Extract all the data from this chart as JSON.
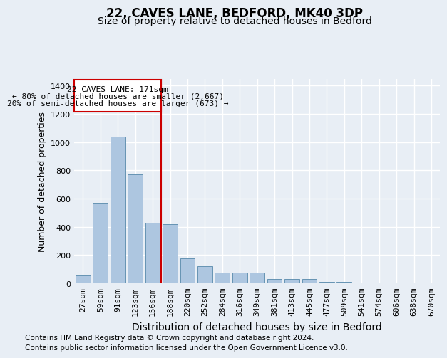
{
  "title1": "22, CAVES LANE, BEDFORD, MK40 3DP",
  "title2": "Size of property relative to detached houses in Bedford",
  "xlabel": "Distribution of detached houses by size in Bedford",
  "ylabel": "Number of detached properties",
  "categories": [
    "27sqm",
    "59sqm",
    "91sqm",
    "123sqm",
    "156sqm",
    "188sqm",
    "220sqm",
    "252sqm",
    "284sqm",
    "316sqm",
    "349sqm",
    "381sqm",
    "413sqm",
    "445sqm",
    "477sqm",
    "509sqm",
    "541sqm",
    "574sqm",
    "606sqm",
    "638sqm",
    "670sqm"
  ],
  "values": [
    57,
    570,
    1040,
    770,
    430,
    420,
    175,
    120,
    75,
    75,
    75,
    30,
    30,
    30,
    8,
    8,
    0,
    0,
    0,
    0,
    0
  ],
  "bar_color": "#adc6e0",
  "bar_edge_color": "#5588aa",
  "red_line_index": 4.5,
  "annotation_line1": "22 CAVES LANE: 171sqm",
  "annotation_line2": "← 80% of detached houses are smaller (2,667)",
  "annotation_line3": "20% of semi-detached houses are larger (673) →",
  "annotation_box_color": "#ffffff",
  "annotation_box_edge_color": "#cc0000",
  "footer1": "Contains HM Land Registry data © Crown copyright and database right 2024.",
  "footer2": "Contains public sector information licensed under the Open Government Licence v3.0.",
  "background_color": "#e8eef5",
  "plot_background": "#e8eef5",
  "ylim": [
    0,
    1450
  ],
  "yticks": [
    0,
    200,
    400,
    600,
    800,
    1000,
    1200,
    1400
  ],
  "grid_color": "#ffffff",
  "title1_fontsize": 12,
  "title2_fontsize": 10,
  "tick_fontsize": 8,
  "ylabel_fontsize": 9,
  "xlabel_fontsize": 10,
  "footer_fontsize": 7.5,
  "annot_fontsize": 8
}
